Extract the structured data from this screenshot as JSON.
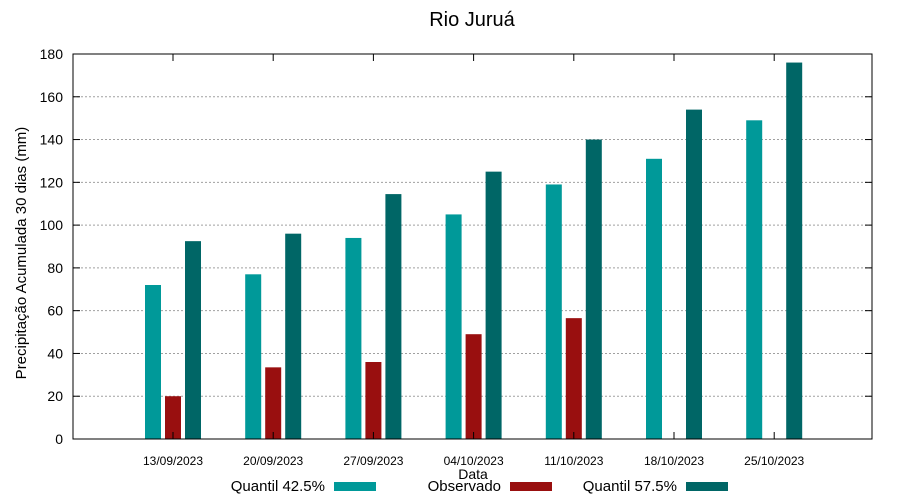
{
  "chart_data": {
    "type": "bar",
    "title": "Rio Juruá",
    "xlabel": "Data",
    "ylabel": "Precipitação Acumulada 30 dias (mm)",
    "ylim": [
      0,
      180
    ],
    "yticks": [
      0,
      20,
      40,
      60,
      80,
      100,
      120,
      140,
      160,
      180
    ],
    "grid": true,
    "legend_position": "bottom",
    "categories": [
      "13/09/2023",
      "20/09/2023",
      "27/09/2023",
      "04/10/2023",
      "11/10/2023",
      "18/10/2023",
      "25/10/2023"
    ],
    "series": [
      {
        "name": "Quantil 42.5%",
        "color": "#009999",
        "values": [
          72,
          77,
          94,
          105,
          119,
          131,
          149
        ]
      },
      {
        "name": "Observado",
        "color": "#990f0f",
        "values": [
          20,
          33.5,
          36,
          49,
          56.5,
          null,
          null
        ]
      },
      {
        "name": "Quantil 57.5%",
        "color": "#006666",
        "values": [
          92.5,
          96,
          114.5,
          125,
          140,
          154,
          176
        ]
      }
    ]
  }
}
